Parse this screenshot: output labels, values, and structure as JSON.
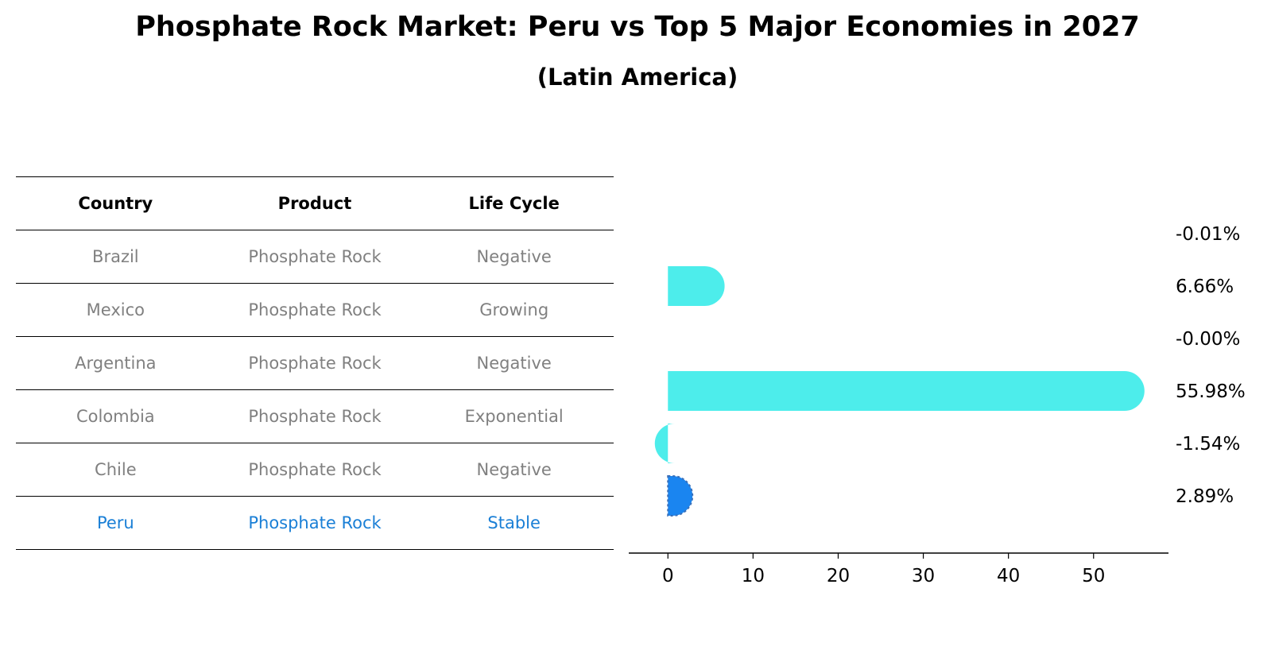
{
  "title": "Phosphate Rock Market: Peru vs Top 5 Major Economies in 2027",
  "subtitle": "(Latin America)",
  "table": {
    "headers": [
      "Country",
      "Product",
      "Life Cycle"
    ],
    "rows": [
      {
        "country": "Brazil",
        "product": "Phosphate Rock",
        "life_cycle": "Negative"
      },
      {
        "country": "Mexico",
        "product": "Phosphate Rock",
        "life_cycle": "Growing"
      },
      {
        "country": "Argentina",
        "product": "Phosphate Rock",
        "life_cycle": "Negative"
      },
      {
        "country": "Colombia",
        "product": "Phosphate Rock",
        "life_cycle": "Exponential"
      },
      {
        "country": "Chile",
        "product": "Phosphate Rock",
        "life_cycle": "Negative"
      },
      {
        "country": "Peru",
        "product": "Phosphate Rock",
        "life_cycle": "Stable"
      }
    ]
  },
  "colors": {
    "bar": "#4dedeb",
    "highlight": "#1a85f0",
    "highlight_text": "#1a7fd6",
    "muted_text": "#808080"
  },
  "chart_data": {
    "type": "bar",
    "orientation": "horizontal",
    "categories": [
      "Brazil",
      "Mexico",
      "Argentina",
      "Colombia",
      "Chile",
      "Peru"
    ],
    "values": [
      -0.01,
      6.66,
      -0.0,
      55.98,
      -1.54,
      2.89
    ],
    "value_labels": [
      "-0.01%",
      "6.66%",
      "-0.00%",
      "55.98%",
      "-1.54%",
      "2.89%"
    ],
    "highlight": "Peru",
    "xlim": [
      -4.6,
      58.8
    ],
    "xticks": [
      0,
      10,
      20,
      30,
      40,
      50
    ],
    "grid": false
  }
}
